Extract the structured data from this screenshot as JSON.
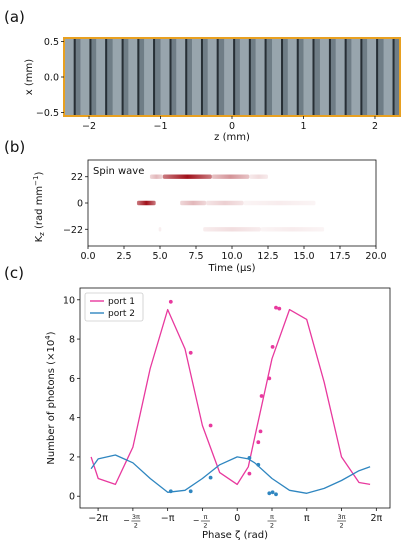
{
  "panels": {
    "a": {
      "label": "(a)",
      "xlabel": "z (mm)",
      "ylabel": "x (mm)",
      "xticks": [
        "−2",
        "−1",
        "0",
        "1",
        "2"
      ],
      "xtick_values": [
        -2,
        -1,
        0,
        1,
        2
      ],
      "yticks": [
        "0.5",
        "0.0",
        "−0.5"
      ],
      "ytick_values": [
        0.5,
        0.0,
        -0.5
      ],
      "xlim": [
        -2.35,
        2.35
      ],
      "ylim": [
        -0.55,
        0.55
      ],
      "fringe_count": 21,
      "border_color": "#e8a020",
      "image_color": "#6f7d86"
    },
    "b": {
      "label": "(b)",
      "annotation": "Spin wave",
      "xlabel": "Time (μs)",
      "ylabel_main": "K",
      "ylabel_sub": "z",
      "ylabel_unit": " (rad mm",
      "ylabel_exp": "−1",
      "ylabel_close": ")",
      "xticks": [
        "0.0",
        "2.5",
        "5.0",
        "7.5",
        "10.0",
        "12.5",
        "15.0",
        "17.5",
        "20.0"
      ],
      "xtick_values": [
        0,
        2.5,
        5,
        7.5,
        10,
        12.5,
        15,
        17.5,
        20
      ],
      "yticks": [
        "22",
        "0",
        "−22"
      ],
      "ytick_values": [
        22,
        0,
        -22
      ],
      "xlim": [
        0,
        20
      ],
      "ylim": [
        -36,
        36
      ],
      "heat_color": "#a0101a"
    },
    "c": {
      "label": "(c)",
      "xlabel": "Phase ζ (rad)",
      "ylabel": "Number of photons (×10",
      "ylabel_exp": "4",
      "ylabel_close": ")",
      "xlim": [
        -7.1,
        6.9
      ],
      "ylim": [
        -0.6,
        10.6
      ],
      "xtick_values": [
        -6.283,
        -4.712,
        -3.1416,
        -1.5708,
        0,
        1.5708,
        3.1416,
        4.712,
        6.283
      ],
      "yticks": [
        "0",
        "2",
        "4",
        "6",
        "8",
        "10"
      ],
      "ytick_values": [
        0,
        2,
        4,
        6,
        8,
        10
      ],
      "legend": [
        "port 1",
        "port 2"
      ],
      "colors": {
        "port1": "#e8399e",
        "port2": "#2f86c0"
      }
    }
  },
  "chart_data": [
    {
      "type": "heatmap",
      "panel": "a",
      "title": "",
      "xlabel": "z (mm)",
      "ylabel": "x (mm)",
      "xlim": [
        -2.35,
        2.35
      ],
      "ylim": [
        -0.55,
        0.55
      ],
      "fringe_positions_mm": [
        -2.27,
        -2.05,
        -1.83,
        -1.6,
        -1.38,
        -1.16,
        -0.93,
        -0.71,
        -0.49,
        -0.27,
        -0.04,
        0.18,
        0.4,
        0.63,
        0.85,
        1.07,
        1.3,
        1.52,
        1.74,
        1.96,
        2.19
      ]
    },
    {
      "type": "heatmap",
      "panel": "b",
      "title": "",
      "annotation": "Spin wave",
      "xlabel": "Time (μs)",
      "ylabel": "Kz (rad mm−1)",
      "xlim": [
        0,
        20
      ],
      "rows": [
        {
          "kz": 22,
          "segments": [
            {
              "t0": 4.3,
              "t1": 5.2,
              "intensity": 0.3
            },
            {
              "t0": 5.2,
              "t1": 8.6,
              "intensity": 1.0
            },
            {
              "t0": 8.6,
              "t1": 11.2,
              "intensity": 0.45
            },
            {
              "t0": 11.2,
              "t1": 12.5,
              "intensity": 0.15
            }
          ]
        },
        {
          "kz": 0,
          "segments": [
            {
              "t0": 3.4,
              "t1": 4.7,
              "intensity": 1.0
            },
            {
              "t0": 6.4,
              "t1": 8.2,
              "intensity": 0.3
            },
            {
              "t0": 8.2,
              "t1": 10.8,
              "intensity": 0.2
            },
            {
              "t0": 10.8,
              "t1": 15.8,
              "intensity": 0.08
            }
          ]
        },
        {
          "kz": -22,
          "segments": [
            {
              "t0": 4.9,
              "t1": 5.1,
              "intensity": 0.08
            },
            {
              "t0": 8.0,
              "t1": 12.0,
              "intensity": 0.14
            },
            {
              "t0": 12.0,
              "t1": 16.4,
              "intensity": 0.08
            }
          ]
        }
      ]
    },
    {
      "type": "line",
      "panel": "c",
      "title": "",
      "xlabel": "Phase ζ (rad)",
      "ylabel": "Number of photons (×10^4)",
      "xlim": [
        -7.1,
        6.9
      ],
      "ylim": [
        -0.6,
        10.6
      ],
      "legend_position": "top-left",
      "series": [
        {
          "name": "port 1",
          "fit": {
            "x": [
              -6.6,
              -6.28,
              -5.5,
              -4.71,
              -3.93,
              -3.14,
              -2.36,
              -1.57,
              -0.79,
              0,
              0.5,
              0.79,
              1.57,
              2.36,
              3.14,
              3.93,
              4.71,
              5.5,
              6.0
            ],
            "y": [
              2.0,
              0.9,
              0.6,
              2.5,
              6.5,
              9.5,
              7.5,
              3.6,
              1.2,
              0.6,
              1.5,
              3.0,
              7.0,
              9.5,
              9.0,
              5.8,
              2.0,
              0.7,
              0.6
            ]
          },
          "points": {
            "x": [
              -3.0,
              -2.1,
              -1.2,
              0.55,
              0.95,
              1.05,
              1.1,
              1.45,
              1.6,
              1.75,
              1.9
            ],
            "y": [
              9.9,
              7.3,
              3.6,
              1.15,
              2.75,
              3.3,
              5.1,
              6.0,
              7.6,
              9.6,
              9.55
            ]
          }
        },
        {
          "name": "port 2",
          "fit": {
            "x": [
              -6.6,
              -6.28,
              -5.5,
              -4.71,
              -3.93,
              -3.14,
              -2.36,
              -1.57,
              -0.79,
              0,
              0.5,
              0.79,
              1.57,
              2.36,
              3.14,
              3.93,
              4.71,
              5.5,
              6.0
            ],
            "y": [
              1.4,
              1.9,
              2.1,
              1.7,
              0.9,
              0.2,
              0.3,
              0.9,
              1.6,
              2.0,
              1.9,
              1.7,
              0.9,
              0.3,
              0.15,
              0.4,
              0.8,
              1.3,
              1.5
            ]
          },
          "points": {
            "x": [
              -3.0,
              -2.1,
              -1.2,
              0.55,
              0.95,
              1.45,
              1.6,
              1.75
            ],
            "y": [
              0.25,
              0.25,
              0.95,
              1.95,
              1.6,
              0.15,
              0.2,
              0.1
            ]
          }
        }
      ]
    }
  ]
}
